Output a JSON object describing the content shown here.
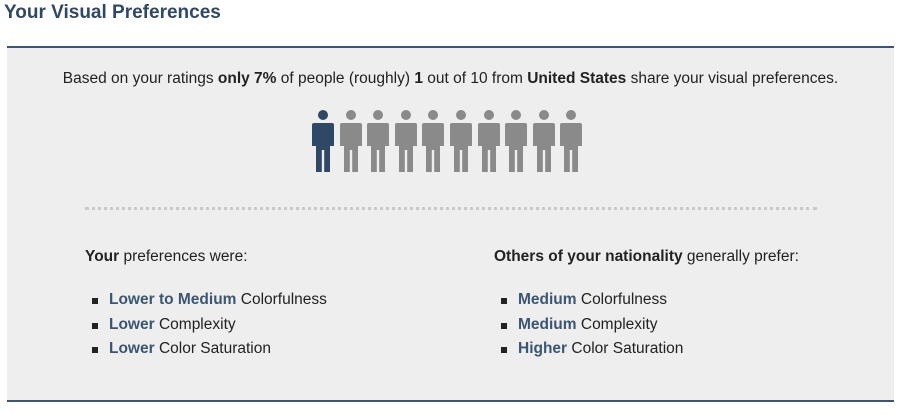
{
  "title": "Your Visual Preferences",
  "summary": {
    "prefix": "Based on your ratings ",
    "percent": "only 7%",
    "mid1": " of people (roughly) ",
    "count": "1",
    "mid2": " out of 10 from ",
    "country": "United States",
    "suffix": " share your visual preferences."
  },
  "people_graphic": {
    "total": 10,
    "highlighted": 1,
    "highlight_color": "#2f4866",
    "other_color": "#8a8a8a",
    "icon": "person-icon"
  },
  "your_preferences": {
    "heading_bold": "Your",
    "heading_rest": " preferences were:",
    "items": [
      {
        "level": "Lower to Medium",
        "attribute": " Colorfulness"
      },
      {
        "level": "Lower",
        "attribute": " Complexity"
      },
      {
        "level": "Lower",
        "attribute": " Color Saturation"
      }
    ]
  },
  "others_preferences": {
    "heading_bold": "Others of your nationality",
    "heading_rest": " generally prefer:",
    "items": [
      {
        "level": "Medium",
        "attribute": " Colorfulness"
      },
      {
        "level": "Medium",
        "attribute": " Complexity"
      },
      {
        "level": "Higher",
        "attribute": " Color Saturation"
      }
    ]
  },
  "colors": {
    "title": "#2f4866",
    "accent": "#3b5573",
    "panel_bg": "#eeeeee"
  }
}
